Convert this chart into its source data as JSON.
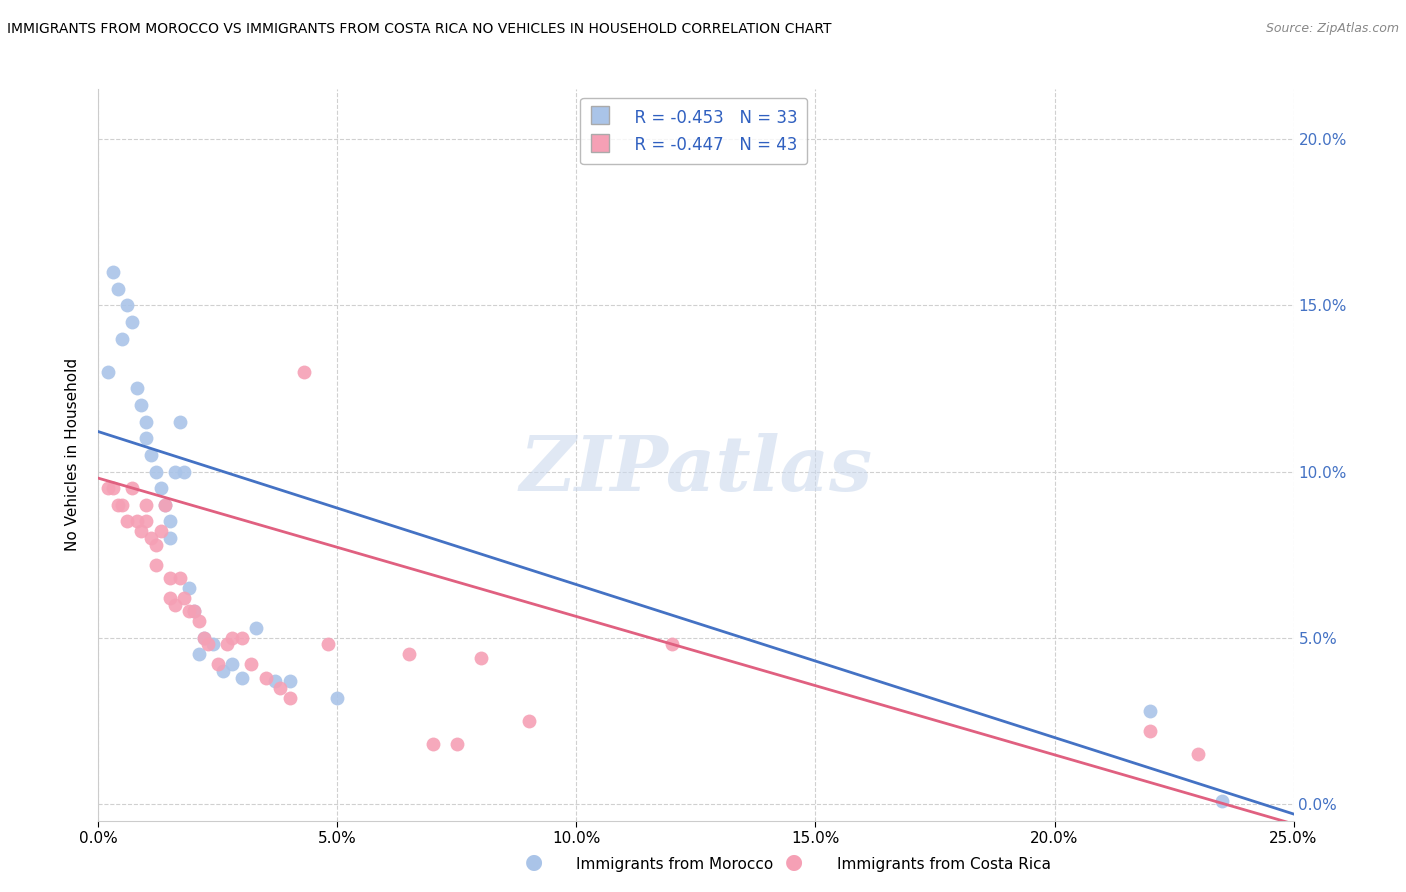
{
  "title": "IMMIGRANTS FROM MOROCCO VS IMMIGRANTS FROM COSTA RICA NO VEHICLES IN HOUSEHOLD CORRELATION CHART",
  "source": "Source: ZipAtlas.com",
  "ylabel": "No Vehicles in Household",
  "xlim": [
    0.0,
    0.25
  ],
  "ylim": [
    -0.005,
    0.215
  ],
  "x_ticks": [
    0.0,
    0.05,
    0.1,
    0.15,
    0.2,
    0.25
  ],
  "y_ticks": [
    0.0,
    0.05,
    0.1,
    0.15,
    0.2
  ],
  "morocco_color": "#aac4e8",
  "costarica_color": "#f5a0b5",
  "morocco_line_color": "#4472c4",
  "costarica_line_color": "#e06080",
  "legend_r_morocco": "R = -0.453",
  "legend_n_morocco": "N = 33",
  "legend_r_costarica": "R = -0.447",
  "legend_n_costarica": "N = 43",
  "morocco_x": [
    0.002,
    0.003,
    0.004,
    0.005,
    0.006,
    0.007,
    0.008,
    0.009,
    0.01,
    0.01,
    0.011,
    0.012,
    0.013,
    0.014,
    0.015,
    0.015,
    0.016,
    0.017,
    0.018,
    0.019,
    0.02,
    0.021,
    0.022,
    0.024,
    0.026,
    0.028,
    0.03,
    0.033,
    0.037,
    0.04,
    0.05,
    0.22,
    0.235
  ],
  "morocco_y": [
    0.13,
    0.16,
    0.155,
    0.14,
    0.15,
    0.145,
    0.125,
    0.12,
    0.11,
    0.115,
    0.105,
    0.1,
    0.095,
    0.09,
    0.085,
    0.08,
    0.1,
    0.115,
    0.1,
    0.065,
    0.058,
    0.045,
    0.05,
    0.048,
    0.04,
    0.042,
    0.038,
    0.053,
    0.037,
    0.037,
    0.032,
    0.028,
    0.001
  ],
  "costarica_x": [
    0.002,
    0.003,
    0.004,
    0.005,
    0.006,
    0.007,
    0.008,
    0.009,
    0.01,
    0.01,
    0.011,
    0.012,
    0.012,
    0.013,
    0.014,
    0.015,
    0.015,
    0.016,
    0.017,
    0.018,
    0.019,
    0.02,
    0.021,
    0.022,
    0.023,
    0.025,
    0.027,
    0.028,
    0.03,
    0.032,
    0.035,
    0.038,
    0.04,
    0.043,
    0.048,
    0.065,
    0.07,
    0.075,
    0.08,
    0.09,
    0.12,
    0.22,
    0.23
  ],
  "costarica_y": [
    0.095,
    0.095,
    0.09,
    0.09,
    0.085,
    0.095,
    0.085,
    0.082,
    0.085,
    0.09,
    0.08,
    0.078,
    0.072,
    0.082,
    0.09,
    0.068,
    0.062,
    0.06,
    0.068,
    0.062,
    0.058,
    0.058,
    0.055,
    0.05,
    0.048,
    0.042,
    0.048,
    0.05,
    0.05,
    0.042,
    0.038,
    0.035,
    0.032,
    0.13,
    0.048,
    0.045,
    0.018,
    0.018,
    0.044,
    0.025,
    0.048,
    0.022,
    0.015
  ],
  "morocco_line_x": [
    0.0,
    0.25
  ],
  "morocco_line_y": [
    0.112,
    -0.003
  ],
  "costarica_line_x": [
    0.0,
    0.25
  ],
  "costarica_line_y": [
    0.098,
    -0.006
  ],
  "watermark_text": "ZIPatlas",
  "background_color": "#ffffff",
  "grid_color": "#d0d0d0"
}
